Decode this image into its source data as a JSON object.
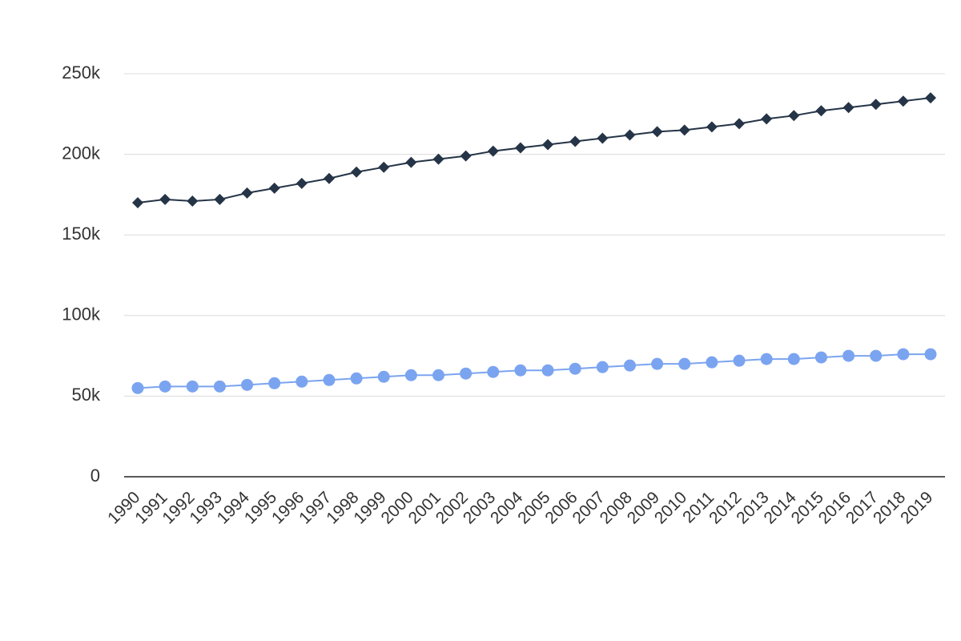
{
  "chart_data": {
    "type": "line",
    "categories": [
      "1990",
      "1991",
      "1992",
      "1993",
      "1994",
      "1995",
      "1996",
      "1997",
      "1998",
      "1999",
      "2000",
      "2001",
      "2002",
      "2003",
      "2004",
      "2005",
      "2006",
      "2007",
      "2008",
      "2009",
      "2010",
      "2011",
      "2012",
      "2013",
      "2014",
      "2015",
      "2016",
      "2017",
      "2018",
      "2019"
    ],
    "series": [
      {
        "color": "#253447",
        "marker": "diamond",
        "values": [
          170000,
          172000,
          171000,
          172000,
          176000,
          179000,
          182000,
          185000,
          189000,
          192000,
          195000,
          197000,
          199000,
          202000,
          204000,
          206000,
          208000,
          210000,
          212000,
          214000,
          215000,
          217000,
          219000,
          222000,
          224000,
          227000,
          229000,
          231000,
          233000,
          235000
        ]
      },
      {
        "color": "#7ba4f0",
        "marker": "circle",
        "values": [
          55000,
          56000,
          56000,
          56000,
          57000,
          58000,
          59000,
          60000,
          61000,
          62000,
          63000,
          63000,
          64000,
          65000,
          66000,
          66000,
          67000,
          68000,
          69000,
          70000,
          70000,
          71000,
          72000,
          73000,
          73000,
          74000,
          75000,
          75000,
          76000,
          76000
        ]
      }
    ],
    "ylim": [
      0,
      250000
    ],
    "yticks": [
      0,
      {
        "value": 50000,
        "label": "50k"
      },
      {
        "value": 100000,
        "label": "100k"
      },
      {
        "value": 150000,
        "label": "150k"
      },
      {
        "value": 200000,
        "label": "200k"
      },
      {
        "value": 250000,
        "label": "250k"
      }
    ],
    "grid": true
  }
}
